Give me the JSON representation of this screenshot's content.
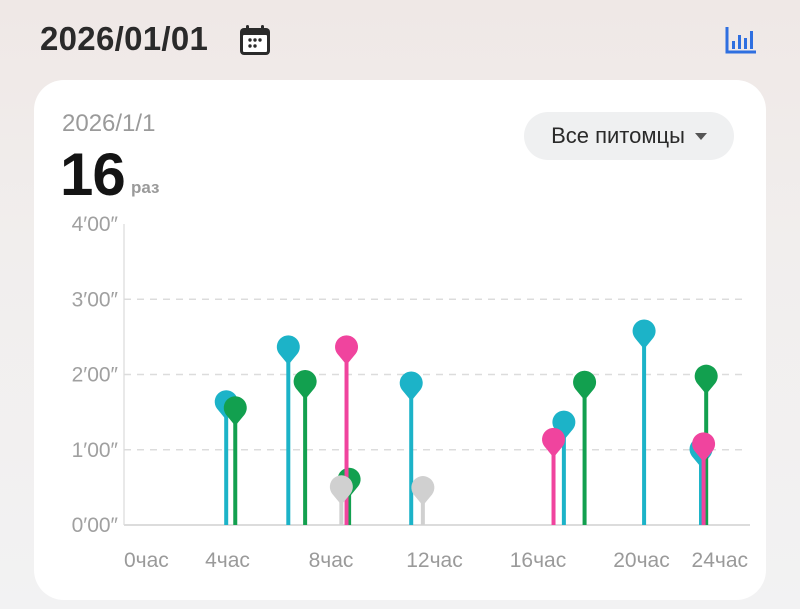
{
  "header": {
    "date": "2026/01/01",
    "calendar_icon": "calendar-icon",
    "stats_icon": "bar-chart-icon",
    "accent": "#2f6fe0"
  },
  "summary": {
    "date": "2026/1/1",
    "count": "16",
    "unit": "раз"
  },
  "filter": {
    "selected": "Все питомцы",
    "icon": "caret-down-icon"
  },
  "chart_data": {
    "type": "lollipop",
    "x_unit": "hours",
    "y_unit": "minutes",
    "xlim": [
      0,
      24
    ],
    "ylim": [
      0,
      4
    ],
    "x_ticks": [
      {
        "value": 0,
        "label": "0час"
      },
      {
        "value": 4,
        "label": "4час"
      },
      {
        "value": 8,
        "label": "8час"
      },
      {
        "value": 12,
        "label": "12час"
      },
      {
        "value": 16,
        "label": "16час"
      },
      {
        "value": 20,
        "label": "20час"
      },
      {
        "value": 24,
        "label": "24час"
      }
    ],
    "y_ticks": [
      {
        "value": 0,
        "label": "0′00″"
      },
      {
        "value": 1,
        "label": "1′00″"
      },
      {
        "value": 2,
        "label": "2′00″"
      },
      {
        "value": 3,
        "label": "3′00″"
      },
      {
        "value": 4,
        "label": "4′00″"
      }
    ],
    "grid": "horizontal dashed",
    "series": [
      {
        "color": "#1cb3c8",
        "points": [
          [
            3.95,
            1.63
          ],
          [
            6.35,
            2.36
          ],
          [
            11.1,
            1.88
          ],
          [
            17.0,
            1.36
          ],
          [
            20.1,
            2.57
          ],
          [
            22.3,
            1.0
          ]
        ]
      },
      {
        "color": "#12a04f",
        "points": [
          [
            4.3,
            1.55
          ],
          [
            7.0,
            1.9
          ],
          [
            8.7,
            0.6
          ],
          [
            17.8,
            1.89
          ],
          [
            22.5,
            1.97
          ]
        ]
      },
      {
        "color": "#f0449e",
        "points": [
          [
            8.6,
            2.36
          ],
          [
            16.6,
            1.13
          ],
          [
            22.4,
            1.07
          ]
        ]
      },
      {
        "color": "#d0d0d0",
        "points": [
          [
            8.4,
            0.5
          ],
          [
            11.55,
            0.49
          ]
        ]
      }
    ]
  }
}
